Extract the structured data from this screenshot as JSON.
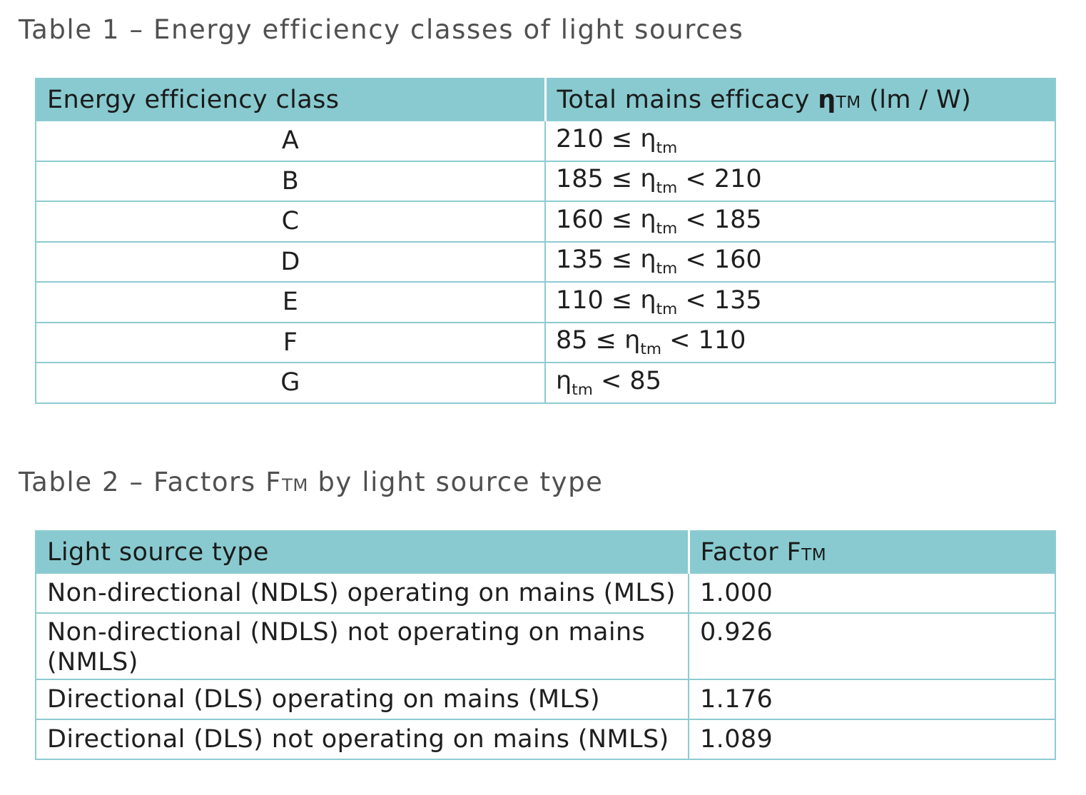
{
  "table1": {
    "caption": "Table 1 – Energy efficiency classes of light sources",
    "headers": {
      "class": "Energy efficiency class",
      "efficacy_prefix": "Total mains efficacy",
      "efficacy_symbol": "η",
      "efficacy_subscript": "TM",
      "efficacy_unit": "(lm / W)"
    },
    "rows": [
      {
        "class": "A",
        "lower": "210 ≤",
        "symbol": "η",
        "subscript": "tm",
        "upper": ""
      },
      {
        "class": "B",
        "lower": "185 ≤",
        "symbol": "η",
        "subscript": "tm",
        "upper": "< 210"
      },
      {
        "class": "C",
        "lower": "160 ≤",
        "symbol": "η",
        "subscript": "tm",
        "upper": "< 185"
      },
      {
        "class": "D",
        "lower": "135 ≤",
        "symbol": "η",
        "subscript": "tm",
        "upper": "< 160"
      },
      {
        "class": "E",
        "lower": "110 ≤",
        "symbol": "η",
        "subscript": "tm",
        "upper": "< 135"
      },
      {
        "class": "F",
        "lower": "85 ≤",
        "symbol": "η",
        "subscript": "tm",
        "upper": "< 110"
      },
      {
        "class": "G",
        "lower": "",
        "symbol": "η",
        "subscript": "tm",
        "upper": "< 85"
      }
    ]
  },
  "table2": {
    "caption_prefix": "Table 2 – Factors F",
    "caption_subscript": "TM",
    "caption_suffix": "by light source type",
    "headers": {
      "type": "Light source type",
      "factor_prefix": "Factor F",
      "factor_subscript": "TM"
    },
    "rows": [
      {
        "type": "Non-directional (NDLS) operating on mains (MLS)",
        "factor": "1.000"
      },
      {
        "type": "Non-directional (NDLS) not operating on mains (NMLS)",
        "factor": "0.926"
      },
      {
        "type": "Directional (DLS) operating on mains (MLS)",
        "factor": "1.176"
      },
      {
        "type": "Directional (DLS) not operating on mains (NMLS)",
        "factor": "1.089"
      }
    ]
  },
  "colors": {
    "header_fill": "#88cad0",
    "border": "#8dcbd1",
    "caption_text": "#505050",
    "body_text": "#1f1f1f"
  }
}
